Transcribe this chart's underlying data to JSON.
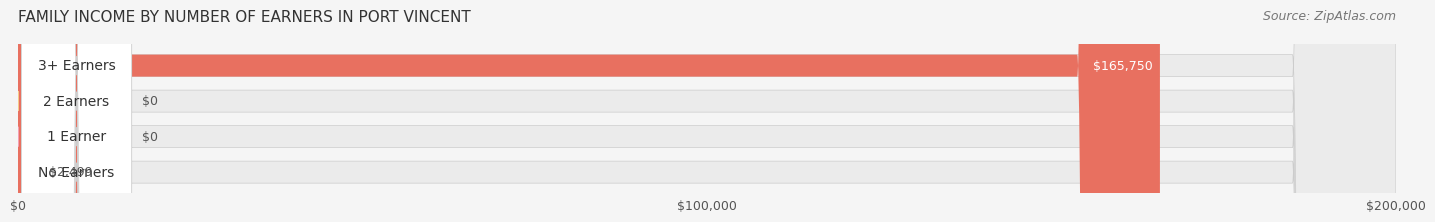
{
  "title": "FAMILY INCOME BY NUMBER OF EARNERS IN PORT VINCENT",
  "source": "Source: ZipAtlas.com",
  "categories": [
    "No Earners",
    "1 Earner",
    "2 Earners",
    "3+ Earners"
  ],
  "values": [
    2499,
    0,
    0,
    165750
  ],
  "bar_colors": [
    "#a0a8d8",
    "#f4a0b4",
    "#f5c98a",
    "#e87060"
  ],
  "label_colors": [
    "#555555",
    "#555555",
    "#555555",
    "#ffffff"
  ],
  "value_labels": [
    "$2,499",
    "$0",
    "$0",
    "$165,750"
  ],
  "xlim": [
    0,
    200000
  ],
  "xticks": [
    0,
    100000,
    200000
  ],
  "xtick_labels": [
    "$0",
    "$100,000",
    "$200,000"
  ],
  "background_color": "#f5f5f5",
  "bar_background_color": "#ebebeb",
  "title_fontsize": 11,
  "source_fontsize": 9,
  "label_fontsize": 10,
  "value_fontsize": 9
}
